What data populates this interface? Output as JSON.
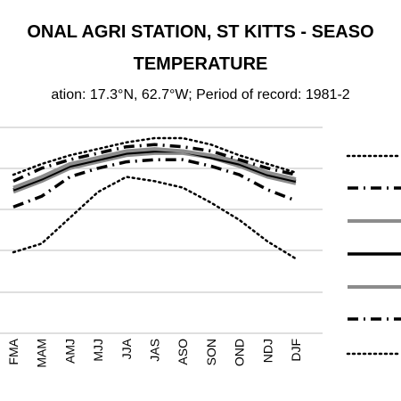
{
  "chart_data": {
    "type": "line",
    "title_line1": "ONAL AGRI STATION, ST KITTS - SEASO",
    "title_line2": "TEMPERATURE",
    "subtitle": "ation: 17.3°N, 62.7°W; Period of record: 1981-2",
    "categories": [
      "FMA",
      "MAM",
      "AMJ",
      "MJJ",
      "JJA",
      "JAS",
      "ASO",
      "SON",
      "OND",
      "NDJ",
      "DJF"
    ],
    "grid": true,
    "legend_position": "right",
    "series": [
      {
        "style": "dotted-thin",
        "color": "#000000",
        "values": [
          0.47,
          0.51,
          0.63,
          0.75,
          0.82,
          0.8,
          0.77,
          0.7,
          0.62,
          0.52,
          0.44
        ]
      },
      {
        "style": "dashdot-thick",
        "color": "#000000",
        "values": [
          0.68,
          0.73,
          0.82,
          0.86,
          0.89,
          0.9,
          0.9,
          0.87,
          0.83,
          0.76,
          0.71
        ]
      },
      {
        "style": "solid-gray",
        "color": "#8c8c8c",
        "values": [
          0.75,
          0.8,
          0.86,
          0.89,
          0.92,
          0.93,
          0.93,
          0.91,
          0.87,
          0.82,
          0.79
        ]
      },
      {
        "style": "solid-black",
        "color": "#000000",
        "values": [
          0.76,
          0.81,
          0.87,
          0.9,
          0.93,
          0.94,
          0.94,
          0.91,
          0.88,
          0.83,
          0.8
        ]
      },
      {
        "style": "solid-gray",
        "color": "#8c8c8c",
        "values": [
          0.77,
          0.82,
          0.88,
          0.91,
          0.94,
          0.95,
          0.94,
          0.92,
          0.89,
          0.84,
          0.81
        ]
      },
      {
        "style": "dashdot-thick",
        "color": "#000000",
        "values": [
          0.8,
          0.86,
          0.9,
          0.93,
          0.96,
          0.97,
          0.96,
          0.94,
          0.9,
          0.86,
          0.83
        ]
      },
      {
        "style": "dotted-thin",
        "color": "#000000",
        "values": [
          0.83,
          0.88,
          0.92,
          0.95,
          0.98,
          1.0,
          1.0,
          0.97,
          0.92,
          0.88,
          0.84
        ]
      }
    ]
  }
}
